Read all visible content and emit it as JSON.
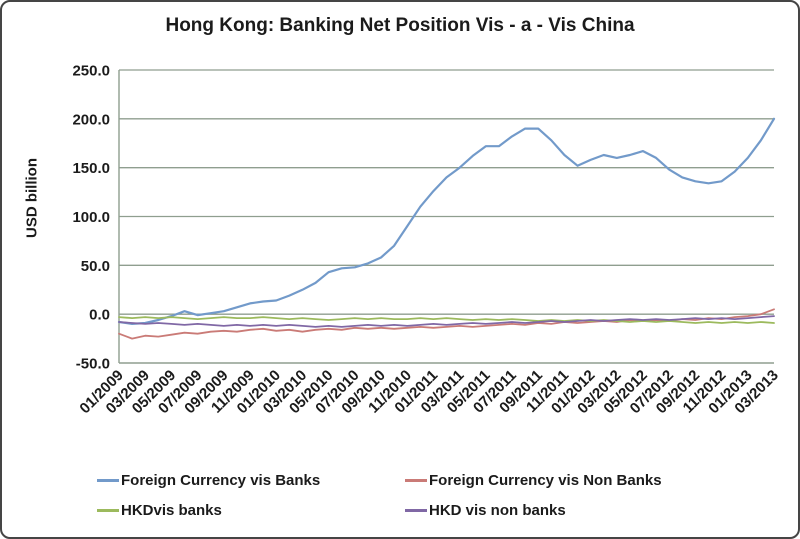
{
  "colors": {
    "gridline": "#8f9e8f",
    "axis": "#8f9e8f",
    "frame_border": "#454545",
    "text": "#1b1b1b",
    "background": "#ffffff"
  },
  "chart_data": {
    "type": "line",
    "title": "Hong Kong: Banking Net Position Vis - a - Vis China",
    "xlabel": "",
    "ylabel": "USD billion",
    "ylim": [
      -50,
      250
    ],
    "grid": "horizontal",
    "legend_position": "bottom",
    "y_ticks": [
      250,
      200,
      150,
      100,
      50,
      0,
      -50
    ],
    "y_tick_labels": [
      "250.0",
      "200.0",
      "150.0",
      "100.0",
      "50.0",
      "0.0",
      "-50.0"
    ],
    "x_tick_labels": [
      "01/2009",
      "03/2009",
      "05/2009",
      "07/2009",
      "09/2009",
      "11/2009",
      "01/2010",
      "03/2010",
      "05/2010",
      "07/2010",
      "09/2010",
      "11/2010",
      "01/2011",
      "03/2011",
      "05/2011",
      "07/2011",
      "09/2011",
      "11/2011",
      "01/2012",
      "03/2012",
      "05/2012",
      "07/2012",
      "09/2012",
      "11/2012",
      "01/2013",
      "03/2013"
    ],
    "x_monthly_start": "01/2009",
    "x_monthly_end": "03/2013",
    "series": [
      {
        "name": "Foreign Currency vis Banks",
        "color": "#729aca",
        "values": [
          -8,
          -10,
          -9,
          -6,
          -2,
          3,
          -1,
          1,
          3,
          7,
          11,
          13,
          14,
          19,
          25,
          32,
          43,
          47,
          48,
          52,
          58,
          70,
          90,
          110,
          126,
          140,
          150,
          162,
          172,
          172,
          182,
          190,
          190,
          178,
          163,
          152,
          158,
          163,
          160,
          163,
          167,
          160,
          148,
          140,
          136,
          134,
          136,
          146,
          160,
          178,
          200
        ]
      },
      {
        "name": "Foreign Currency vis Non Banks",
        "color": "#ca7b77",
        "values": [
          -20,
          -25,
          -22,
          -23,
          -21,
          -19,
          -20,
          -18,
          -17,
          -18,
          -16,
          -15,
          -17,
          -16,
          -18,
          -16,
          -15,
          -16,
          -14,
          -15,
          -14,
          -15,
          -14,
          -13,
          -14,
          -13,
          -12,
          -13,
          -12,
          -11,
          -10,
          -11,
          -9,
          -10,
          -8,
          -9,
          -8,
          -7,
          -8,
          -6,
          -7,
          -6,
          -7,
          -5,
          -6,
          -4,
          -5,
          -3,
          -2,
          0,
          5
        ]
      },
      {
        "name": "HKDvis banks",
        "color": "#9cba5d",
        "values": [
          -3,
          -4,
          -3,
          -4,
          -3,
          -4,
          -5,
          -4,
          -3,
          -4,
          -4,
          -3,
          -4,
          -5,
          -4,
          -5,
          -6,
          -5,
          -4,
          -5,
          -4,
          -5,
          -5,
          -4,
          -5,
          -4,
          -5,
          -6,
          -5,
          -6,
          -5,
          -6,
          -7,
          -6,
          -7,
          -6,
          -7,
          -6,
          -7,
          -8,
          -7,
          -8,
          -7,
          -8,
          -9,
          -8,
          -9,
          -8,
          -9,
          -8,
          -9
        ]
      },
      {
        "name": "HKD vis non banks",
        "color": "#8068a5",
        "values": [
          -8,
          -9,
          -10,
          -9,
          -10,
          -11,
          -10,
          -11,
          -12,
          -11,
          -12,
          -11,
          -12,
          -11,
          -12,
          -13,
          -12,
          -13,
          -12,
          -11,
          -12,
          -11,
          -12,
          -11,
          -10,
          -11,
          -10,
          -9,
          -10,
          -9,
          -8,
          -9,
          -8,
          -7,
          -8,
          -7,
          -6,
          -7,
          -6,
          -5,
          -6,
          -5,
          -6,
          -5,
          -4,
          -5,
          -4,
          -5,
          -4,
          -3,
          -2
        ]
      }
    ]
  }
}
